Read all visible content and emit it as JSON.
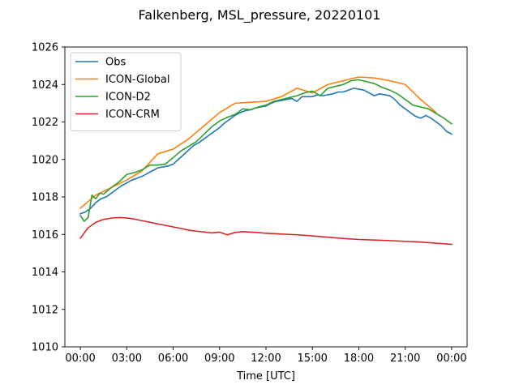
{
  "chart_data": {
    "type": "line",
    "title": "Falkenberg, MSL_pressure, 20220101",
    "xlabel": "Time [UTC]",
    "ylabel": "",
    "xlim": [
      -1,
      25
    ],
    "ylim": [
      1010,
      1026
    ],
    "x_ticks": [
      0,
      3,
      6,
      9,
      12,
      15,
      18,
      21,
      24
    ],
    "x_tick_labels": [
      "00:00",
      "03:00",
      "06:00",
      "09:00",
      "12:00",
      "15:00",
      "18:00",
      "21:00",
      "00:00"
    ],
    "y_ticks": [
      1010,
      1012,
      1014,
      1016,
      1018,
      1020,
      1022,
      1024,
      1026
    ],
    "grid": false,
    "legend": "top-left",
    "series": [
      {
        "name": "Obs",
        "color": "#1f77b4",
        "x": [
          0,
          0.33,
          0.67,
          1,
          1.33,
          1.67,
          2,
          2.33,
          2.67,
          3,
          3.33,
          3.67,
          4,
          4.33,
          4.67,
          5,
          5.33,
          5.67,
          6,
          6.33,
          6.67,
          7,
          7.33,
          7.67,
          8,
          8.33,
          8.67,
          9,
          9.33,
          9.67,
          10,
          10.33,
          10.67,
          11,
          11.33,
          11.67,
          12,
          12.33,
          12.67,
          13,
          13.33,
          13.67,
          14,
          14.33,
          14.67,
          15,
          15.33,
          15.67,
          16,
          16.33,
          16.67,
          17,
          17.33,
          17.67,
          18,
          18.33,
          18.67,
          19,
          19.33,
          19.67,
          20,
          20.33,
          20.67,
          21,
          21.33,
          21.67,
          22,
          22.33,
          22.67,
          23,
          23.33,
          23.67,
          24
        ],
        "y": [
          1017.1,
          1017.2,
          1017.4,
          1017.7,
          1017.9,
          1018.0,
          1018.2,
          1018.4,
          1018.6,
          1018.75,
          1018.9,
          1019.0,
          1019.1,
          1019.25,
          1019.4,
          1019.55,
          1019.6,
          1019.65,
          1019.75,
          1020.0,
          1020.25,
          1020.5,
          1020.75,
          1020.9,
          1021.1,
          1021.3,
          1021.5,
          1021.7,
          1021.95,
          1022.15,
          1022.35,
          1022.5,
          1022.6,
          1022.65,
          1022.75,
          1022.8,
          1022.85,
          1023.0,
          1023.1,
          1023.15,
          1023.2,
          1023.25,
          1023.1,
          1023.35,
          1023.35,
          1023.35,
          1023.45,
          1023.4,
          1023.45,
          1023.5,
          1023.6,
          1023.6,
          1023.7,
          1023.8,
          1023.75,
          1023.7,
          1023.55,
          1023.4,
          1023.5,
          1023.45,
          1023.4,
          1023.2,
          1022.9,
          1022.7,
          1022.5,
          1022.3,
          1022.2,
          1022.35,
          1022.2,
          1022.0,
          1021.8,
          1021.5,
          1021.35
        ]
      },
      {
        "name": "ICON-Global",
        "color": "#ff7f0e",
        "x": [
          0,
          1,
          2,
          3,
          4,
          5,
          6,
          7,
          8,
          9,
          10,
          11,
          12,
          13,
          14,
          15,
          16,
          17,
          18,
          19,
          20,
          21,
          22,
          23
        ],
        "y": [
          1017.4,
          1018.1,
          1018.5,
          1018.9,
          1019.4,
          1020.3,
          1020.55,
          1021.1,
          1021.8,
          1022.5,
          1023.0,
          1023.05,
          1023.1,
          1023.35,
          1023.8,
          1023.55,
          1024.0,
          1024.2,
          1024.4,
          1024.35,
          1024.2,
          1024.0,
          1023.2,
          1022.5
        ]
      },
      {
        "name": "ICON-D2",
        "color": "#2ca02c",
        "x": [
          0,
          0.25,
          0.5,
          0.75,
          1,
          1.25,
          1.5,
          2,
          2.5,
          3,
          3.5,
          4,
          4.5,
          5,
          5.5,
          6,
          6.5,
          7,
          7.5,
          8,
          8.5,
          9,
          9.5,
          10,
          10.5,
          11,
          11.5,
          12,
          12.5,
          13,
          13.5,
          14,
          14.5,
          15,
          15.5,
          16,
          16.5,
          17,
          17.5,
          18,
          18.5,
          19,
          19.5,
          20,
          20.5,
          21,
          21.5,
          22,
          22.5,
          23,
          23.5,
          24
        ],
        "y": [
          1017.0,
          1016.7,
          1016.9,
          1018.1,
          1017.9,
          1018.2,
          1018.15,
          1018.5,
          1018.8,
          1019.2,
          1019.3,
          1019.45,
          1019.7,
          1019.7,
          1019.75,
          1020.1,
          1020.45,
          1020.7,
          1020.95,
          1021.35,
          1021.75,
          1022.05,
          1022.25,
          1022.4,
          1022.7,
          1022.65,
          1022.8,
          1022.9,
          1023.1,
          1023.2,
          1023.3,
          1023.4,
          1023.55,
          1023.65,
          1023.4,
          1023.8,
          1023.9,
          1024.0,
          1024.2,
          1024.25,
          1024.15,
          1024.05,
          1023.85,
          1023.7,
          1023.5,
          1023.2,
          1022.9,
          1022.8,
          1022.7,
          1022.45,
          1022.2,
          1021.9
        ]
      },
      {
        "name": "ICON-CRM",
        "color": "#d62728",
        "x": [
          0,
          0.5,
          1,
          1.5,
          2,
          2.5,
          3,
          3.5,
          4,
          4.5,
          5,
          5.5,
          6,
          6.5,
          7,
          7.5,
          8,
          8.5,
          9,
          9.5,
          10,
          10.5,
          11,
          11.5,
          12,
          12.5,
          13,
          13.5,
          14,
          15,
          16,
          17,
          18,
          19,
          20,
          21,
          22,
          23,
          24
        ],
        "y": [
          1015.8,
          1016.35,
          1016.65,
          1016.8,
          1016.87,
          1016.9,
          1016.88,
          1016.82,
          1016.73,
          1016.65,
          1016.56,
          1016.48,
          1016.4,
          1016.32,
          1016.23,
          1016.17,
          1016.13,
          1016.08,
          1016.12,
          1015.98,
          1016.1,
          1016.15,
          1016.12,
          1016.1,
          1016.06,
          1016.04,
          1016.02,
          1016.0,
          1015.98,
          1015.92,
          1015.85,
          1015.78,
          1015.73,
          1015.7,
          1015.67,
          1015.63,
          1015.59,
          1015.53,
          1015.47
        ]
      }
    ]
  }
}
